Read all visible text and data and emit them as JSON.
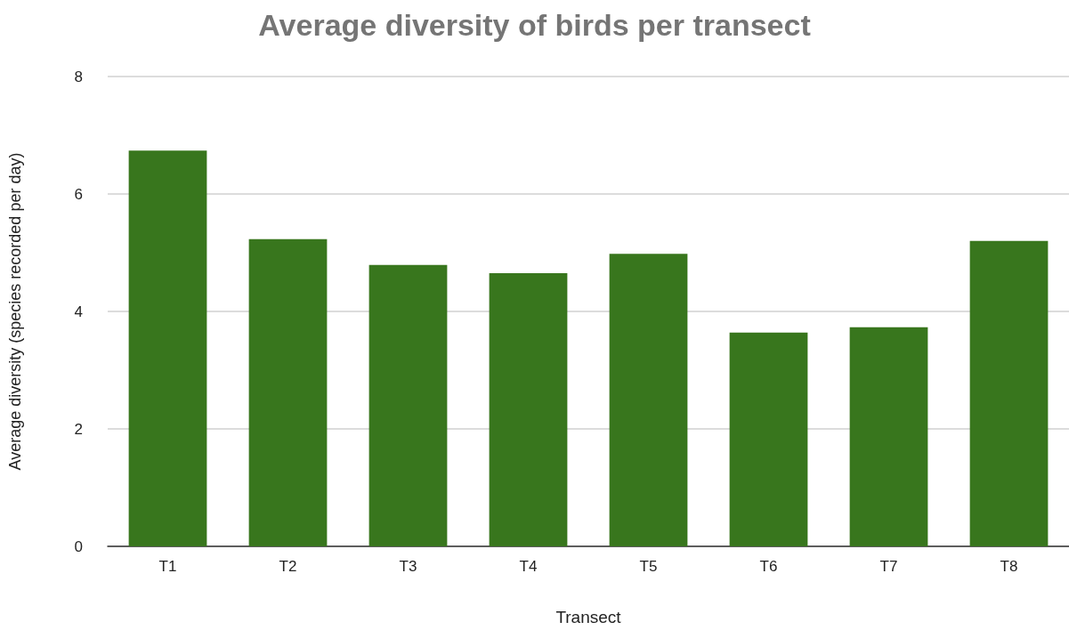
{
  "chart_data": {
    "type": "bar",
    "title": "Average diversity of birds per transect",
    "xlabel": "Transect",
    "ylabel": "Average diversity (species recorded per day)",
    "categories": [
      "T1",
      "T2",
      "T3",
      "T4",
      "T5",
      "T6",
      "T7",
      "T8"
    ],
    "values": [
      6.74,
      5.23,
      4.79,
      4.65,
      4.98,
      3.64,
      3.73,
      5.2
    ],
    "color": "#38761d",
    "ylim": [
      0,
      8
    ],
    "yticks": [
      0,
      2,
      4,
      6,
      8
    ],
    "grid": "y"
  }
}
